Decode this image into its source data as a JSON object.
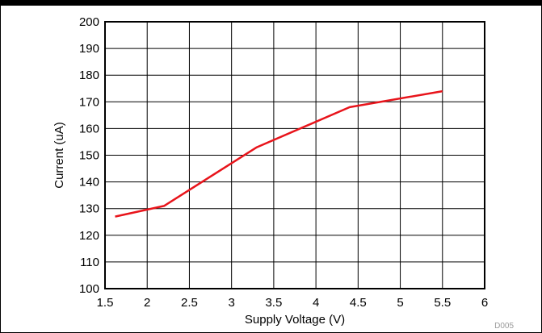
{
  "chart_data": {
    "type": "line",
    "title": "",
    "xlabel": "Supply Voltage (V)",
    "ylabel": "Current (uA)",
    "xlim": [
      1.5,
      6
    ],
    "ylim": [
      100,
      200
    ],
    "x_ticks": [
      "1.5",
      "2",
      "2.5",
      "3",
      "3.5",
      "4",
      "4.5",
      "5",
      "5.5",
      "6"
    ],
    "y_ticks": [
      "100",
      "110",
      "120",
      "130",
      "140",
      "150",
      "160",
      "170",
      "180",
      "190",
      "200"
    ],
    "grid": true,
    "series": [
      {
        "color": "#e8141b",
        "x": [
          1.62,
          2.2,
          3.3,
          4.4,
          5.5
        ],
        "y": [
          127,
          131,
          153,
          168,
          174
        ]
      }
    ],
    "figure_id": "D005"
  }
}
